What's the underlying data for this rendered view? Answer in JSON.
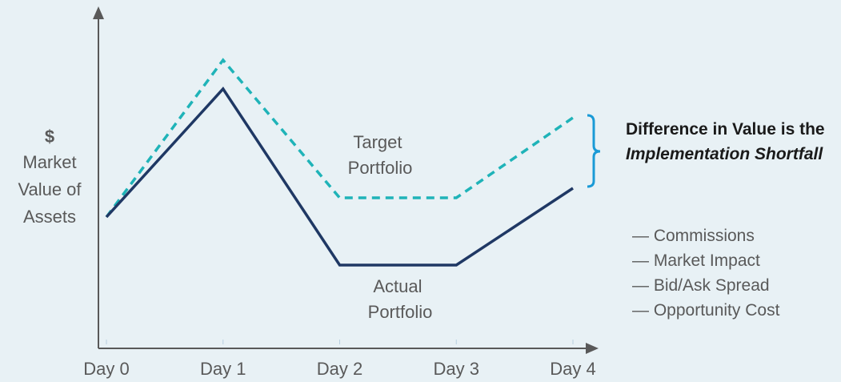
{
  "chart_data": {
    "type": "line",
    "ylabel_symbol": "$",
    "ylabel": [
      "Market",
      "Value of",
      "Assets"
    ],
    "categories": [
      "Day 0",
      "Day 1",
      "Day 2",
      "Day 3",
      "Day 4"
    ],
    "ylim": [
      0,
      100
    ],
    "series": [
      {
        "name": "Target Portfolio",
        "color": "#1fb3b8",
        "dashed": true,
        "values": [
          41,
          90,
          47,
          47,
          72
        ]
      },
      {
        "name": "Actual Portfolio",
        "color": "#1f3864",
        "dashed": false,
        "values": [
          41,
          81,
          26,
          26,
          50
        ]
      }
    ],
    "annotation": {
      "text": "Difference in Value is the",
      "emphasis": "Implementation Shortfall"
    },
    "components": [
      "— Commissions",
      "— Market Impact",
      "— Bid/Ask Spread",
      "— Opportunity Cost"
    ]
  }
}
